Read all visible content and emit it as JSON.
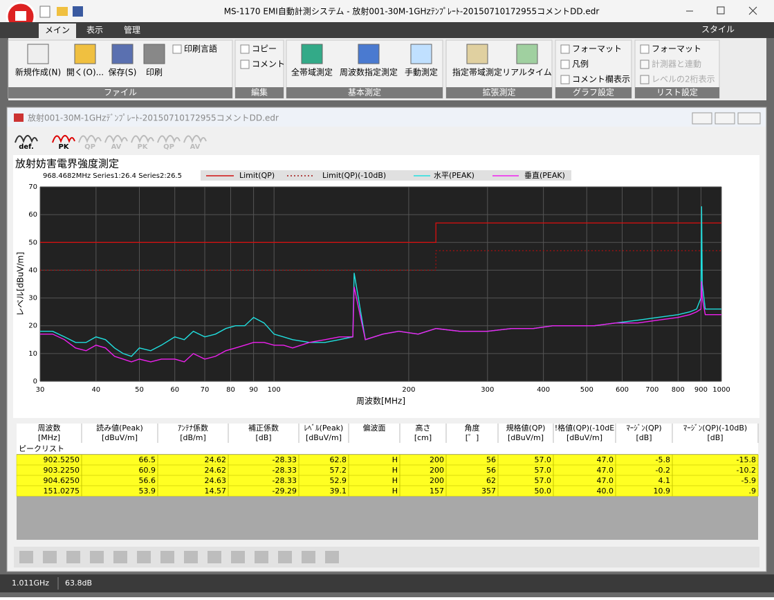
{
  "window_title": "MS-1170 EMI自動計測システム - 放射001-30M-1GHzﾃﾝﾌﾟﾚｰﾄ-20150710172955コメントDD.edr",
  "tabs": [
    "メイン",
    "表示",
    "管理"
  ],
  "style_menu": "スタイル",
  "ribbon": [
    {
      "label": "ファイル",
      "items": [
        "新規作成(N)",
        "開く(O)...",
        "保存(S)",
        "印刷",
        "印刷言語"
      ]
    },
    {
      "label": "編集",
      "items": [
        "コピー",
        "コメント"
      ]
    },
    {
      "label": "基本測定",
      "items": [
        "全帯域測定",
        "周波数指定測定",
        "手動測定"
      ]
    },
    {
      "label": "拡張測定",
      "items": [
        "指定帯域測定",
        "リアルタイム"
      ]
    },
    {
      "label": "グラフ設定",
      "items": [
        "フォーマット",
        "凡例",
        "コメント欄表示"
      ]
    },
    {
      "label": "リスト設定",
      "items": [
        "フォーマット",
        "計測器と連動",
        "レベルの2桁表示"
      ]
    }
  ],
  "document_title": "放射001-30M-1GHzﾃﾞﾝﾌﾟﾚｰﾄ-20150710172955コメントDD.edr",
  "trace_buttons": [
    "def.",
    "PK",
    "QP",
    "AV",
    "PK",
    "QP",
    "AV"
  ],
  "chart_data": {
    "type": "line",
    "title": "放射妨害電界強度測定",
    "cursor_info": "968.4682MHz Series1:26.4 Series2:26.5",
    "x_label": "周波数[MHz]",
    "y_label": "レベル[dBuV/m]",
    "x_log": true,
    "grid": true,
    "xlim": [
      30,
      1000
    ],
    "ylim": [
      0,
      70
    ],
    "xticks": [
      30,
      40,
      50,
      60,
      70,
      80,
      90,
      100,
      200,
      300,
      400,
      500,
      600,
      700,
      800,
      900,
      1000
    ],
    "yticks": [
      0,
      10,
      20,
      30,
      40,
      50,
      60,
      70
    ],
    "series": [
      {
        "name": "Limit(QP)",
        "color": "#d01010",
        "dash": false,
        "x": [
          30,
          230,
          230,
          1000
        ],
        "values": [
          50,
          50,
          57,
          57
        ]
      },
      {
        "name": "Limit(QP)(-10dB)",
        "color": "#a01010",
        "dash": true,
        "x": [
          30,
          230,
          230,
          1000
        ],
        "values": [
          40,
          40,
          47,
          47
        ]
      },
      {
        "name": "水平(PEAK)",
        "color": "#20e0e0",
        "dash": false,
        "x": [
          30,
          32,
          34,
          36,
          38,
          40,
          42,
          44,
          46,
          48,
          50,
          53,
          56,
          60,
          63,
          66,
          70,
          74,
          78,
          82,
          86,
          90,
          95,
          100,
          105,
          110,
          120,
          130,
          140,
          150,
          151,
          160,
          175,
          190,
          210,
          230,
          260,
          300,
          340,
          380,
          420,
          470,
          520,
          580,
          650,
          720,
          800,
          850,
          880,
          900,
          903,
          906,
          920,
          950,
          1000
        ],
        "values": [
          18,
          18,
          16,
          14,
          14,
          16,
          15,
          12,
          10,
          9,
          12,
          11,
          13,
          16,
          15,
          18,
          16,
          17,
          19,
          20,
          20,
          23,
          21,
          17,
          16,
          15,
          14,
          14,
          15,
          16,
          39,
          15,
          17,
          18,
          17,
          19,
          18,
          18,
          19,
          19,
          20,
          20,
          20,
          21,
          22,
          23,
          24,
          25,
          26,
          30,
          63,
          35,
          26,
          26,
          26
        ]
      },
      {
        "name": "垂直(PEAK)",
        "color": "#f020f0",
        "dash": false,
        "x": [
          30,
          32,
          34,
          36,
          38,
          40,
          42,
          44,
          46,
          48,
          50,
          53,
          56,
          60,
          63,
          66,
          70,
          74,
          78,
          82,
          86,
          90,
          95,
          100,
          105,
          110,
          120,
          130,
          140,
          150,
          151,
          160,
          175,
          190,
          210,
          230,
          260,
          300,
          340,
          380,
          420,
          470,
          520,
          580,
          650,
          720,
          800,
          850,
          880,
          900,
          903,
          906,
          920,
          950,
          1000
        ],
        "values": [
          17,
          17,
          15,
          12,
          11,
          13,
          12,
          9,
          8,
          7,
          8,
          7,
          8,
          8,
          7,
          10,
          8,
          9,
          11,
          12,
          13,
          14,
          14,
          13,
          13,
          12,
          14,
          15,
          16,
          16,
          34,
          15,
          17,
          18,
          17,
          19,
          18,
          18,
          19,
          19,
          20,
          20,
          20,
          21,
          21,
          22,
          23,
          24,
          25,
          26,
          36,
          30,
          24,
          24,
          24
        ]
      }
    ]
  },
  "table": {
    "headers": [
      [
        "周波数",
        "[MHz]"
      ],
      [
        "読み値(Peak)",
        "[dBuV/m]"
      ],
      [
        "ｱﾝﾃﾅ係数",
        "[dB/m]"
      ],
      [
        "補正係数",
        "[dB]"
      ],
      [
        "ﾚﾍﾞﾙ(Peak)",
        "[dBuV/m]"
      ],
      [
        "偏波面",
        ""
      ],
      [
        "高さ",
        "[cm]"
      ],
      [
        "角度",
        "[゜]"
      ],
      [
        "規格値(QP)",
        "[dBuV/m]"
      ],
      [
        "!格値(QP)(-10dE",
        "[dBuV/m]"
      ],
      [
        "ﾏｰｼﾞﾝ(QP)",
        "[dB]"
      ],
      [
        "ﾏｰｼﾞﾝ(QP)(-10dB)",
        "[dB]"
      ]
    ],
    "group": "ピークリスト",
    "rows": [
      [
        "902.5250",
        "66.5",
        "24.62",
        "-28.33",
        "62.8",
        "H",
        "200",
        "56",
        "57.0",
        "47.0",
        "-5.8",
        "-15.8"
      ],
      [
        "903.2250",
        "60.9",
        "24.62",
        "-28.33",
        "57.2",
        "H",
        "200",
        "56",
        "57.0",
        "47.0",
        "-0.2",
        "-10.2"
      ],
      [
        "904.6250",
        "56.6",
        "24.63",
        "-28.33",
        "52.9",
        "H",
        "200",
        "62",
        "57.0",
        "47.0",
        "4.1",
        "-5.9"
      ],
      [
        "151.0275",
        "53.9",
        "14.57",
        "-29.29",
        "39.1",
        "H",
        "157",
        "357",
        "50.0",
        "40.0",
        "10.9",
        ".9"
      ]
    ]
  },
  "status": [
    "1.011GHz",
    "63.8dB"
  ]
}
